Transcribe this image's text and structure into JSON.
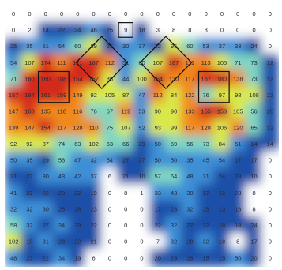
{
  "chart_data": {
    "type": "heatmap",
    "title": "",
    "xlabel": "",
    "ylabel": "",
    "grid": false,
    "legend": "none",
    "rows": 16,
    "cols": 17,
    "colors": {
      "low": "#1f4fa8",
      "mid_low": "#3d8fd6",
      "mid": "#7fd6c2",
      "mid_high": "#d9e84a",
      "high": "#f08a1e",
      "peak": "#d42a1e",
      "empty": "#ffffff"
    },
    "values": [
      [
        0,
        0,
        0,
        0,
        0,
        0,
        0,
        0,
        0,
        0,
        0,
        0,
        0,
        0,
        0,
        0,
        0
      ],
      [
        0,
        2,
        14,
        22,
        24,
        46,
        25,
        9,
        18,
        3,
        8,
        8,
        8,
        0,
        0,
        0,
        0
      ],
      [
        25,
        35,
        51,
        54,
        60,
        89,
        25,
        30,
        37,
        22,
        95,
        60,
        53,
        37,
        33,
        24,
        0
      ],
      [
        54,
        107,
        174,
        111,
        171,
        167,
        112,
        51,
        60,
        107,
        167,
        111,
        113,
        105,
        71,
        73,
        12
      ],
      [
        71,
        160,
        160,
        188,
        154,
        157,
        86,
        44,
        100,
        154,
        130,
        117,
        167,
        180,
        138,
        73,
        12
      ],
      [
        157,
        184,
        161,
        159,
        149,
        92,
        105,
        87,
        47,
        112,
        84,
        122,
        76,
        97,
        98,
        108,
        22
      ],
      [
        147,
        168,
        135,
        118,
        116,
        76,
        67,
        119,
        53,
        90,
        90,
        133,
        155,
        153,
        105,
        56,
        20
      ],
      [
        139,
        147,
        154,
        117,
        128,
        110,
        75,
        107,
        52,
        93,
        99,
        117,
        128,
        106,
        120,
        65,
        12
      ],
      [
        92,
        92,
        87,
        74,
        63,
        102,
        63,
        66,
        29,
        50,
        59,
        56,
        73,
        84,
        51,
        14,
        14
      ],
      [
        50,
        35,
        29,
        58,
        47,
        32,
        54,
        27,
        27,
        50,
        50,
        35,
        45,
        54,
        17,
        17,
        0
      ],
      [
        21,
        22,
        30,
        43,
        42,
        37,
        6,
        21,
        10,
        57,
        64,
        48,
        31,
        24,
        28,
        10,
        0
      ],
      [
        41,
        22,
        22,
        23,
        22,
        19,
        0,
        8,
        1,
        33,
        43,
        30,
        17,
        22,
        23,
        8,
        0
      ],
      [
        32,
        32,
        30,
        28,
        28,
        23,
        0,
        0,
        0,
        17,
        28,
        32,
        25,
        13,
        18,
        8,
        0
      ],
      [
        58,
        32,
        27,
        34,
        29,
        22,
        0,
        0,
        0,
        22,
        32,
        27,
        22,
        18,
        18,
        24,
        0
      ],
      [
        102,
        10,
        31,
        28,
        22,
        21,
        0,
        0,
        0,
        7,
        32,
        28,
        32,
        18,
        8,
        17,
        0
      ],
      [
        48,
        23,
        22,
        34,
        19,
        6,
        0,
        0,
        0,
        20,
        29,
        26,
        15,
        15,
        50,
        20,
        0
      ]
    ],
    "annotations": [
      {
        "shape": "square",
        "row": 1,
        "col": 7,
        "span": 1
      },
      {
        "shape": "diamond",
        "row": 3.5,
        "col": 6
      },
      {
        "shape": "diamond",
        "row": 3.5,
        "col": 10
      },
      {
        "shape": "square",
        "row": 4,
        "col": 2,
        "span": 2
      },
      {
        "shape": "square",
        "row": 4,
        "col": 12,
        "span": 2
      }
    ]
  }
}
